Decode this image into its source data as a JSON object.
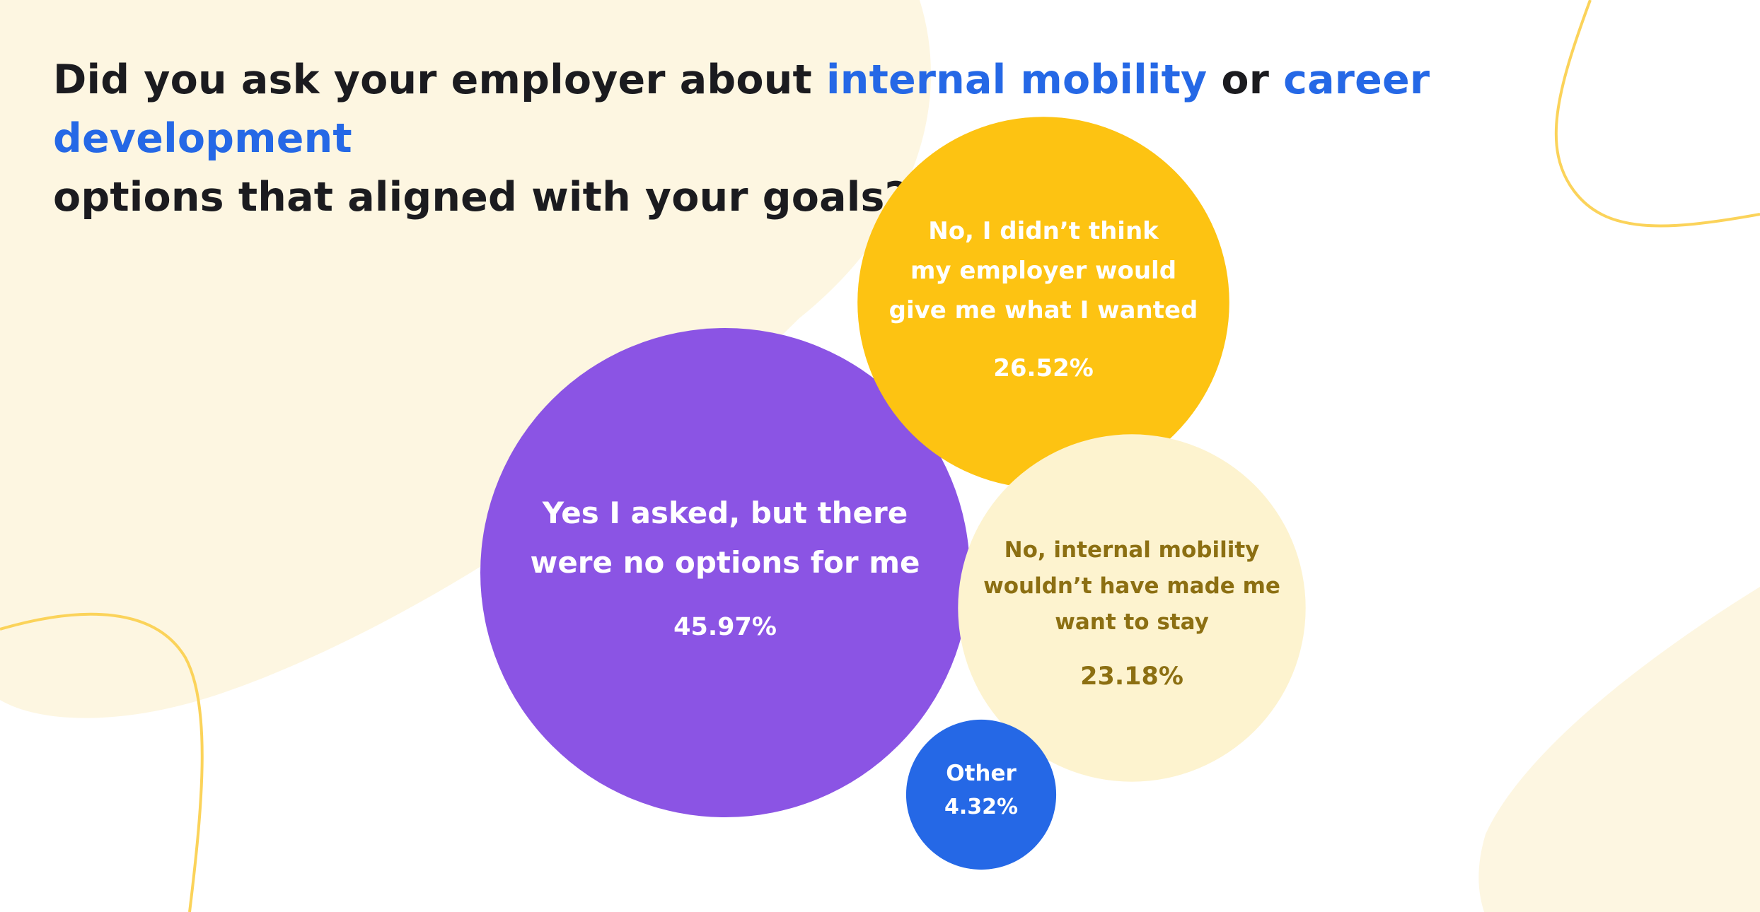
{
  "title": {
    "part1": "Did you ask your employer about ",
    "highlight1": "internal mobility",
    "part2": " or ",
    "highlight2": "career development",
    "part3": "options that aligned with your goals?"
  },
  "colors": {
    "highlight": "#2568e6",
    "background_blob": "#fdf6e1",
    "accent_line": "#fbd35a"
  },
  "chart_data": {
    "type": "bubble",
    "categories": [
      "Yes I asked, but there were no options for me",
      "No, I didn’t think my employer would give me what I wanted",
      "No, internal mobility wouldn’t have made me want to stay",
      "Other"
    ],
    "values": [
      45.97,
      26.52,
      23.18,
      4.32
    ],
    "unit": "%",
    "bubbles": [
      {
        "label_lines": [
          "Yes I asked, but there",
          "were no options for me"
        ],
        "value": 45.97,
        "value_label": "45.97%",
        "color": "#8b54e4",
        "text_color": "#ffffff"
      },
      {
        "label_lines": [
          "No, I didn’t think",
          "my employer would",
          "give me what I wanted"
        ],
        "value": 26.52,
        "value_label": "26.52%",
        "color": "#fdc312",
        "text_color": "#ffffff"
      },
      {
        "label_lines": [
          "No, internal mobility",
          "wouldn’t have made me",
          "want to stay"
        ],
        "value": 23.18,
        "value_label": "23.18%",
        "color": "#fdf3cf",
        "text_color": "#8c6f12"
      },
      {
        "label_lines": [
          "Other"
        ],
        "value": 4.32,
        "value_label": "4.32%",
        "color": "#2568e6",
        "text_color": "#ffffff"
      }
    ]
  }
}
